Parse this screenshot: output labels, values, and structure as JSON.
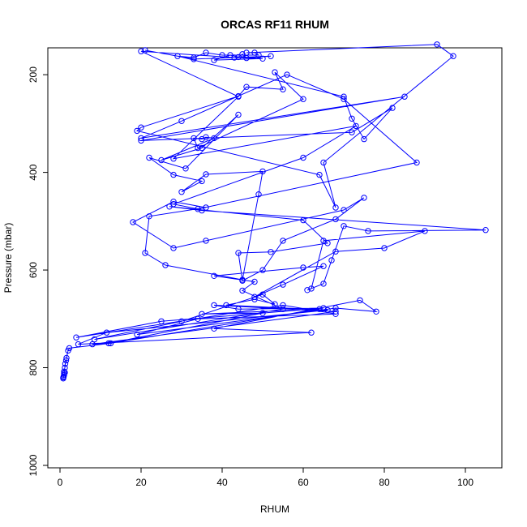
{
  "chart_data": {
    "type": "line",
    "title": "ORCAS RF11 RHUM",
    "xlabel": "RHUM",
    "ylabel": "Pressure (mbar)",
    "xlim": [
      -3,
      109
    ],
    "ylim": [
      1005,
      145
    ],
    "y_reversed": true,
    "x_ticks": [
      0,
      20,
      40,
      60,
      80,
      100
    ],
    "y_ticks": [
      200,
      400,
      600,
      800,
      1000
    ],
    "grid": false,
    "legend": "none",
    "series": [
      {
        "color": "#0000ff",
        "marker": "open-circle",
        "points": [
          [
            0.8,
            822
          ],
          [
            0.8,
            820
          ],
          [
            0.9,
            818
          ],
          [
            1.0,
            815
          ],
          [
            1.0,
            812
          ],
          [
            1.2,
            810
          ],
          [
            1.0,
            808
          ],
          [
            1.2,
            800
          ],
          [
            1.3,
            792
          ],
          [
            1.5,
            785
          ],
          [
            1.6,
            780
          ],
          [
            2.0,
            765
          ],
          [
            2.3,
            760
          ],
          [
            12.5,
            750
          ],
          [
            64,
            680
          ],
          [
            35,
            690
          ],
          [
            50,
            688
          ],
          [
            12.0,
            750
          ],
          [
            8.0,
            752
          ],
          [
            68,
            685
          ],
          [
            38,
            672
          ],
          [
            44,
            680
          ],
          [
            65,
            678
          ],
          [
            25,
            705
          ],
          [
            4.0,
            738
          ],
          [
            55,
            672
          ],
          [
            68,
            690
          ],
          [
            34,
            700
          ],
          [
            19,
            732
          ],
          [
            68,
            678
          ],
          [
            78,
            685
          ],
          [
            74,
            662
          ],
          [
            38,
            720
          ],
          [
            62,
            728
          ],
          [
            4.5,
            752
          ],
          [
            11.5,
            728
          ],
          [
            66,
            682
          ],
          [
            41,
            672
          ],
          [
            48,
            660
          ],
          [
            53,
            670
          ],
          [
            50,
            650
          ],
          [
            30,
            705
          ],
          [
            8.5,
            742
          ],
          [
            55,
            680
          ],
          [
            45,
            642
          ],
          [
            48,
            624
          ],
          [
            38,
            612
          ],
          [
            60,
            595
          ],
          [
            65,
            592
          ],
          [
            55,
            630
          ],
          [
            48,
            655
          ],
          [
            68,
            562
          ],
          [
            80,
            555
          ],
          [
            90,
            520
          ],
          [
            65,
            540
          ],
          [
            62,
            638
          ],
          [
            61,
            641
          ],
          [
            65,
            628
          ],
          [
            67,
            580
          ],
          [
            70,
            510
          ],
          [
            76,
            520
          ],
          [
            105,
            518
          ],
          [
            35,
            478
          ],
          [
            27,
            470
          ],
          [
            60,
            498
          ],
          [
            66,
            545
          ],
          [
            52,
            563
          ],
          [
            44,
            565
          ],
          [
            45,
            622
          ],
          [
            50,
            600
          ],
          [
            55,
            540
          ],
          [
            68,
            496
          ],
          [
            75,
            452
          ],
          [
            70,
            477
          ],
          [
            36,
            540
          ],
          [
            28,
            555
          ],
          [
            18,
            502
          ],
          [
            28,
            460
          ],
          [
            36,
            472
          ],
          [
            22,
            490
          ],
          [
            21,
            565
          ],
          [
            26,
            590
          ],
          [
            45,
            620
          ],
          [
            49,
            445
          ],
          [
            50,
            398
          ],
          [
            36,
            404
          ],
          [
            30,
            440
          ],
          [
            35,
            418
          ],
          [
            28,
            405
          ],
          [
            22,
            370
          ],
          [
            31,
            392
          ],
          [
            44,
            282
          ],
          [
            35,
            350
          ],
          [
            25,
            375
          ],
          [
            38,
            330
          ],
          [
            36,
            328
          ],
          [
            35,
            332
          ],
          [
            33,
            330
          ],
          [
            34,
            350
          ],
          [
            60,
            250
          ],
          [
            53,
            195
          ],
          [
            55,
            230
          ],
          [
            46,
            225
          ],
          [
            44,
            244
          ],
          [
            20,
            308
          ],
          [
            19,
            315
          ],
          [
            64,
            405
          ],
          [
            68,
            472
          ],
          [
            65,
            380
          ],
          [
            97,
            162
          ],
          [
            93,
            138
          ],
          [
            46,
            155
          ],
          [
            48,
            155
          ],
          [
            49,
            160
          ],
          [
            40,
            160
          ],
          [
            36,
            155
          ],
          [
            33,
            165
          ],
          [
            29,
            162
          ],
          [
            70,
            245
          ],
          [
            72,
            290
          ],
          [
            75,
            332
          ],
          [
            82,
            268
          ],
          [
            72,
            318
          ],
          [
            20,
            335
          ],
          [
            85,
            245
          ],
          [
            20,
            330
          ],
          [
            30,
            295
          ],
          [
            56,
            200
          ],
          [
            70,
            250
          ],
          [
            88,
            380
          ],
          [
            34,
            475
          ],
          [
            28,
            465
          ],
          [
            60,
            370
          ],
          [
            73,
            305
          ],
          [
            28,
            372
          ],
          [
            44,
            245
          ],
          [
            20,
            152
          ],
          [
            43,
            165
          ],
          [
            50,
            167
          ],
          [
            38,
            170
          ],
          [
            42,
            160
          ],
          [
            44,
            164
          ],
          [
            45,
            158
          ],
          [
            46,
            166
          ],
          [
            52,
            162
          ],
          [
            33,
            168
          ],
          [
            21,
            150
          ]
        ]
      }
    ]
  }
}
